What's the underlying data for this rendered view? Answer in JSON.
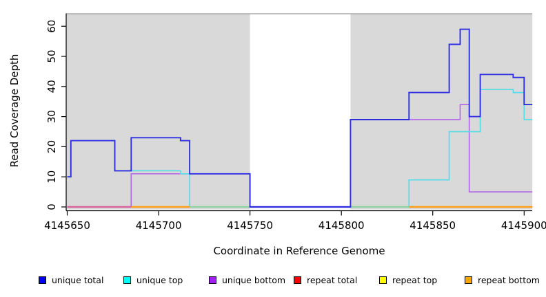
{
  "chart_data": {
    "type": "line",
    "subtype": "step-after",
    "title": "",
    "xlabel": "Coordinate in Reference Genome",
    "ylabel": "Read Coverage Depth",
    "xlim": [
      4145649.5,
      4145904.5
    ],
    "ylim": [
      0,
      64
    ],
    "x_ticks": [
      4145650,
      4145700,
      4145750,
      4145800,
      4145850,
      4145900
    ],
    "y_ticks": [
      0,
      10,
      20,
      30,
      40,
      50,
      60
    ],
    "grid": false,
    "legend_position": "bottom-horizontal",
    "plot_background": "#ffffff",
    "shaded_region_color": "#d9d9d9",
    "shaded_regions": [
      {
        "from": 4145649.5,
        "to": 4145750
      },
      {
        "from": 4145805,
        "to": 4145904.5
      }
    ],
    "white_gap_region": {
      "from": 4145750,
      "to": 4145805
    },
    "series": [
      {
        "name": "unique total",
        "color": "#0000ee",
        "line_color": "#2e2ee0",
        "points": [
          [
            4145650,
            10
          ],
          [
            4145652,
            22
          ],
          [
            4145676,
            12
          ],
          [
            4145685,
            23
          ],
          [
            4145712,
            22
          ],
          [
            4145717,
            11
          ],
          [
            4145750,
            0
          ],
          [
            4145805,
            29
          ],
          [
            4145837,
            38
          ],
          [
            4145859,
            54
          ],
          [
            4145865,
            59
          ],
          [
            4145870,
            30
          ],
          [
            4145876,
            44
          ],
          [
            4145894,
            43
          ],
          [
            4145900,
            34
          ],
          [
            4145904.5,
            34
          ]
        ]
      },
      {
        "name": "unique top",
        "color": "#00ffff",
        "line_color": "#55dde6",
        "points": [
          [
            4145650,
            10
          ],
          [
            4145652,
            22
          ],
          [
            4145676,
            12
          ],
          [
            4145712,
            11
          ],
          [
            4145717,
            0
          ],
          [
            4145837,
            9
          ],
          [
            4145859,
            25
          ],
          [
            4145876,
            39
          ],
          [
            4145894,
            38
          ],
          [
            4145900,
            29
          ],
          [
            4145904.5,
            29
          ]
        ]
      },
      {
        "name": "unique bottom",
        "color": "#a020f0",
        "line_color": "#b36ae6",
        "points": [
          [
            4145650,
            0
          ],
          [
            4145685,
            11
          ],
          [
            4145750,
            0
          ],
          [
            4145805,
            29
          ],
          [
            4145865,
            34
          ],
          [
            4145870,
            5
          ],
          [
            4145904.5,
            5
          ]
        ]
      },
      {
        "name": "repeat total",
        "color": "#ff0000",
        "line_color": "#ff0000",
        "points": [
          [
            4145650,
            0
          ],
          [
            4145904.5,
            0
          ]
        ]
      },
      {
        "name": "repeat top",
        "color": "#ffff00",
        "line_color": "#ffff00",
        "points": [
          [
            4145650,
            0
          ],
          [
            4145904.5,
            0
          ]
        ]
      },
      {
        "name": "repeat bottom",
        "color": "#ffa500",
        "line_color": "#ff9e1b",
        "points": [
          [
            4145650,
            0
          ],
          [
            4145904.5,
            0
          ]
        ]
      }
    ],
    "baseline_segments": [
      {
        "from": 4145650,
        "to": 4145685,
        "color": "#d9639f"
      },
      {
        "from": 4145685,
        "to": 4145717,
        "color": "#ff9e1b"
      },
      {
        "from": 4145717,
        "to": 4145750,
        "color": "#8fd3a2"
      },
      {
        "from": 4145750,
        "to": 4145805,
        "color": "#6f58dd"
      },
      {
        "from": 4145805,
        "to": 4145837,
        "color": "#8fd3a2"
      },
      {
        "from": 4145837,
        "to": 4145904.5,
        "color": "#ff9e1b"
      }
    ]
  }
}
